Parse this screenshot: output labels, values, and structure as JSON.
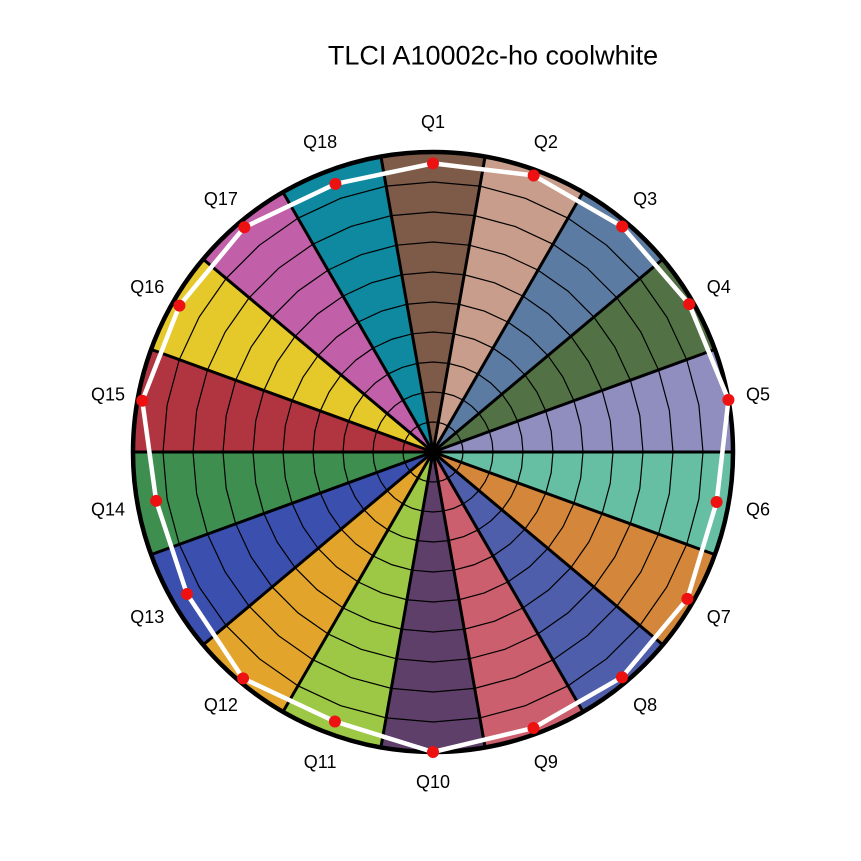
{
  "title": "TLCI A10002c-ho coolwhite",
  "chart_data": {
    "type": "polar",
    "subtype": "tlci-colour-sector-radar",
    "title": "TLCI A10002c-ho coolwhite",
    "categories": [
      "Q1",
      "Q2",
      "Q3",
      "Q4",
      "Q5",
      "Q6",
      "Q7",
      "Q8",
      "Q9",
      "Q10",
      "Q11",
      "Q12",
      "Q13",
      "Q14",
      "Q15",
      "Q16",
      "Q17",
      "Q18"
    ],
    "values": [
      96.2,
      98.1,
      98.1,
      98.6,
      100,
      96.0,
      97.9,
      98.0,
      97.9,
      100,
      95.6,
      98.5,
      94.7,
      93.7,
      98.4,
      97.6,
      97.8,
      95.1
    ],
    "sector_colors": [
      "#7E5A49",
      "#C89D8C",
      "#5B7BA3",
      "#527245",
      "#908DBF",
      "#66BFA3",
      "#D4873A",
      "#4F5EAA",
      "#CC5F6D",
      "#5E3F69",
      "#9CC846",
      "#E2A42B",
      "#3A4FAE",
      "#3E8F4F",
      "#B03540",
      "#E5C829",
      "#C15FA9",
      "#0F89A0"
    ],
    "radial_axis": {
      "min": 0,
      "max": 100,
      "gridline_step": 10,
      "tick_labels_visible": false
    },
    "angular_layout": {
      "start": "top",
      "direction": "clockwise",
      "sector_width_deg": 20
    },
    "grid": "on",
    "legend": "none",
    "styles": {
      "background": "#FFFFFF",
      "value_line_color": "#FFFFFF",
      "marker_color": "#EE1111",
      "grid_color": "#000000",
      "rim_color": "#000000",
      "title_color": "#000000",
      "label_color": "#000000"
    }
  }
}
